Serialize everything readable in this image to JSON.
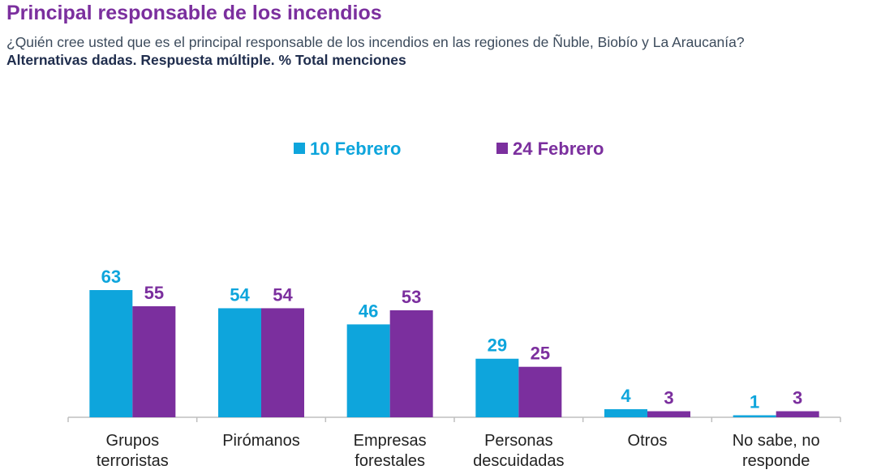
{
  "header": {
    "title": "Principal responsable de los incendios",
    "subtitle": "¿Quién cree usted que es el principal responsable de los incendios en las regiones de Ñuble, Biobío y La Araucanía?",
    "note": "Alternativas dadas. Respuesta múltiple. % Total menciones"
  },
  "chart_data": {
    "type": "bar",
    "title": "Principal responsable de los incendios",
    "categories": [
      [
        "Grupos",
        "terroristas"
      ],
      [
        "Pirómanos"
      ],
      [
        "Empresas",
        "forestales"
      ],
      [
        "Personas",
        "descuidadas"
      ],
      [
        "Otros"
      ],
      [
        "No sabe, no",
        "responde"
      ]
    ],
    "series": [
      {
        "name": "10 Febrero",
        "color": "#0ea5dc",
        "values": [
          63,
          54,
          46,
          29,
          4,
          1
        ]
      },
      {
        "name": "24 Febrero",
        "color": "#7b2f9e",
        "values": [
          55,
          54,
          53,
          25,
          3,
          3
        ]
      }
    ],
    "ylim": [
      0,
      63
    ],
    "legend_position": "top-center",
    "grid": false,
    "data_labels": true
  }
}
